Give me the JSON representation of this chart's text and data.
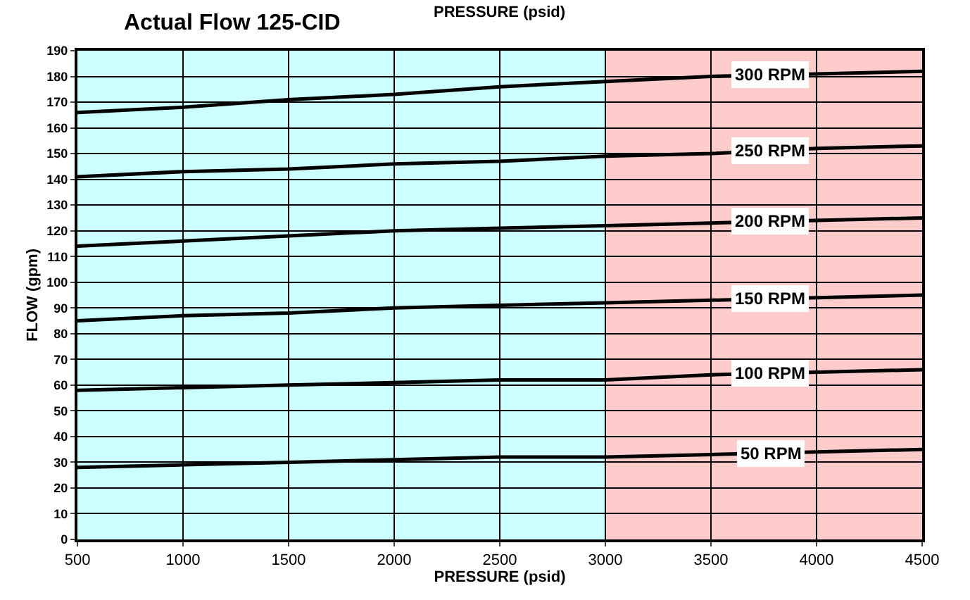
{
  "chart_data": {
    "type": "line",
    "title": "Actual Flow 125-CID",
    "xlabel": "PRESSURE (psid)",
    "ylabel": "FLOW (gpm)",
    "annotations": [
      "PRESSURE (psid)"
    ],
    "x": [
      500,
      1000,
      1500,
      2000,
      2500,
      3000,
      3500,
      4000,
      4500
    ],
    "series": [
      {
        "name": "300 RPM",
        "color": "#000000",
        "values": [
          166,
          168,
          171,
          173,
          176,
          178,
          180,
          181,
          182
        ]
      },
      {
        "name": "250 RPM",
        "color": "#000000",
        "values": [
          141,
          143,
          144,
          146,
          147,
          149,
          150,
          152,
          153
        ]
      },
      {
        "name": "200 RPM",
        "color": "#000000",
        "values": [
          114,
          116,
          118,
          120,
          121,
          122,
          123,
          124,
          125
        ]
      },
      {
        "name": "150 RPM",
        "color": "#000000",
        "values": [
          85,
          87,
          88,
          90,
          91,
          92,
          93,
          94,
          95
        ]
      },
      {
        "name": "100 RPM",
        "color": "#000000",
        "values": [
          58,
          59,
          60,
          61,
          62,
          62,
          64,
          65,
          66
        ]
      },
      {
        "name": "50 RPM",
        "color": "#000000",
        "values": [
          28,
          29,
          30,
          31,
          32,
          32,
          33,
          34,
          35
        ]
      }
    ],
    "xlim": [
      500,
      4500
    ],
    "xticks": [
      500,
      1000,
      1500,
      2000,
      2500,
      3000,
      3500,
      4000,
      4500
    ],
    "ylim": [
      0,
      190
    ],
    "yticks": [
      0,
      10,
      20,
      30,
      40,
      50,
      60,
      70,
      80,
      90,
      100,
      110,
      120,
      130,
      140,
      150,
      160,
      170,
      180,
      190
    ],
    "bands": [
      {
        "axis": "x",
        "from": 500,
        "to": 3000,
        "color": "#ccffff"
      },
      {
        "axis": "x",
        "from": 3000,
        "to": 4500,
        "color": "#ffcccc"
      }
    ],
    "grid": true,
    "legend": false,
    "marker": "none",
    "line_style": "solid"
  }
}
